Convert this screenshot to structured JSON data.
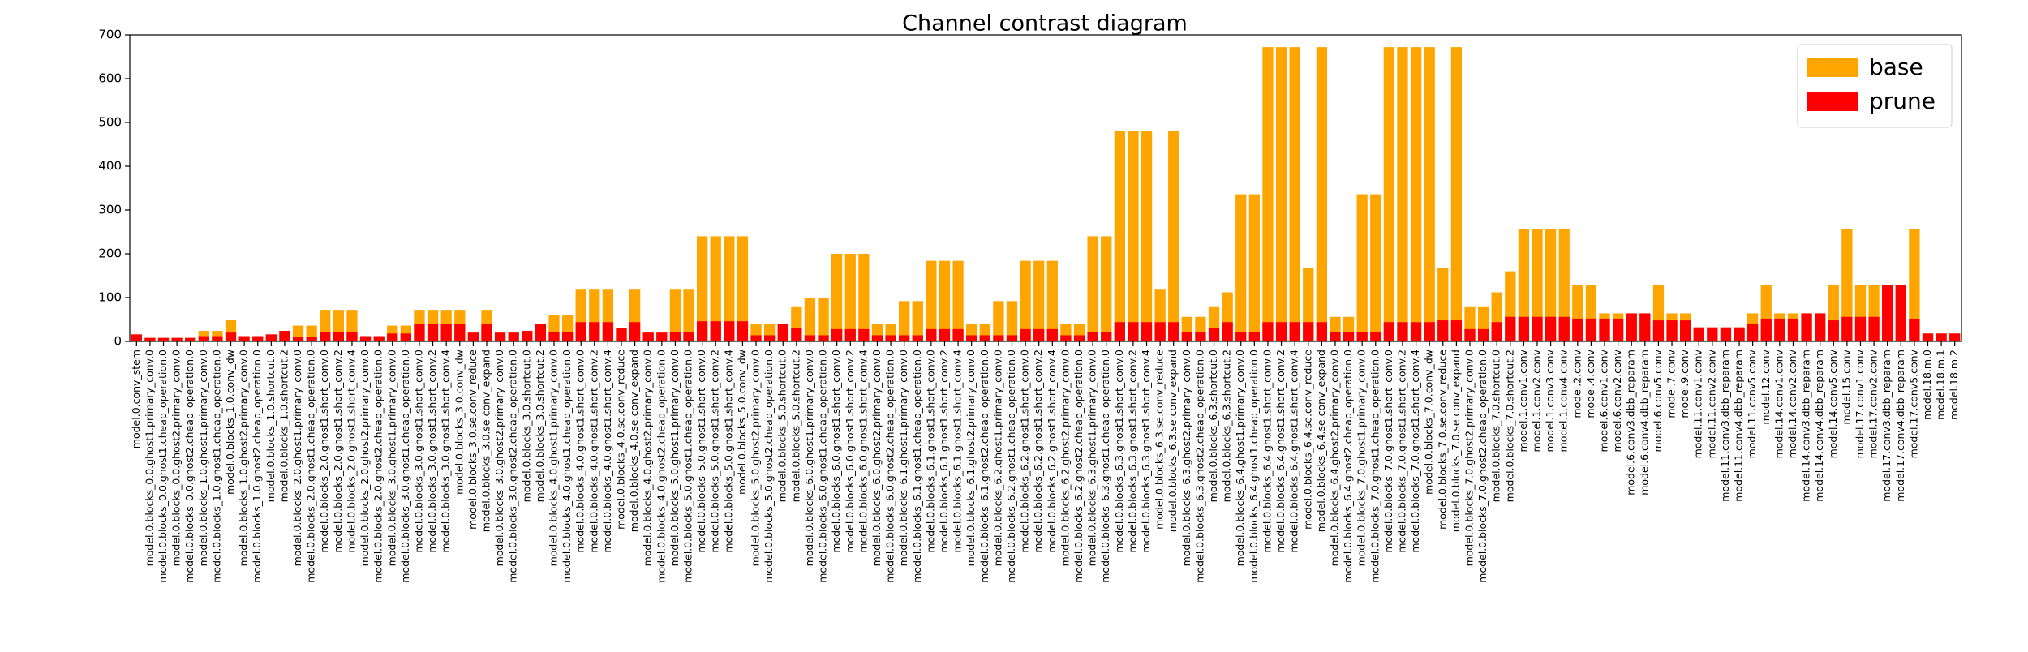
{
  "chart_data": {
    "type": "bar",
    "title": "Channel contrast diagram",
    "categories": [
      "model.0.conv_stem",
      "model.0.blocks_0.0.ghost1.primary_conv.0",
      "model.0.blocks_0.0.ghost1.cheap_operation.0",
      "model.0.blocks_0.0.ghost2.primary_conv.0",
      "model.0.blocks_0.0.ghost2.cheap_operation.0",
      "model.0.blocks_1.0.ghost1.primary_conv.0",
      "model.0.blocks_1.0.ghost1.cheap_operation.0",
      "model.0.blocks_1.0.conv_dw",
      "model.0.blocks_1.0.ghost2.primary_conv.0",
      "model.0.blocks_1.0.ghost2.cheap_operation.0",
      "model.0.blocks_1.0.shortcut.0",
      "model.0.blocks_1.0.shortcut.2",
      "model.0.blocks_2.0.ghost1.primary_conv.0",
      "model.0.blocks_2.0.ghost1.cheap_operation.0",
      "model.0.blocks_2.0.ghost1.short_conv.0",
      "model.0.blocks_2.0.ghost1.short_conv.2",
      "model.0.blocks_2.0.ghost1.short_conv.4",
      "model.0.blocks_2.0.ghost2.primary_conv.0",
      "model.0.blocks_2.0.ghost2.cheap_operation.0",
      "model.0.blocks_3.0.ghost1.primary_conv.0",
      "model.0.blocks_3.0.ghost1.cheap_operation.0",
      "model.0.blocks_3.0.ghost1.short_conv.0",
      "model.0.blocks_3.0.ghost1.short_conv.2",
      "model.0.blocks_3.0.ghost1.short_conv.4",
      "model.0.blocks_3.0.conv_dw",
      "model.0.blocks_3.0.se.conv_reduce",
      "model.0.blocks_3.0.se.conv_expand",
      "model.0.blocks_3.0.ghost2.primary_conv.0",
      "model.0.blocks_3.0.ghost2.cheap_operation.0",
      "model.0.blocks_3.0.shortcut.0",
      "model.0.blocks_3.0.shortcut.2",
      "model.0.blocks_4.0.ghost1.primary_conv.0",
      "model.0.blocks_4.0.ghost1.cheap_operation.0",
      "model.0.blocks_4.0.ghost1.short_conv.0",
      "model.0.blocks_4.0.ghost1.short_conv.2",
      "model.0.blocks_4.0.ghost1.short_conv.4",
      "model.0.blocks_4.0.se.conv_reduce",
      "model.0.blocks_4.0.se.conv_expand",
      "model.0.blocks_4.0.ghost2.primary_conv.0",
      "model.0.blocks_4.0.ghost2.cheap_operation.0",
      "model.0.blocks_5.0.ghost1.primary_conv.0",
      "model.0.blocks_5.0.ghost1.cheap_operation.0",
      "model.0.blocks_5.0.ghost1.short_conv.0",
      "model.0.blocks_5.0.ghost1.short_conv.2",
      "model.0.blocks_5.0.ghost1.short_conv.4",
      "model.0.blocks_5.0.conv_dw",
      "model.0.blocks_5.0.ghost2.primary_conv.0",
      "model.0.blocks_5.0.ghost2.cheap_operation.0",
      "model.0.blocks_5.0.shortcut.0",
      "model.0.blocks_5.0.shortcut.2",
      "model.0.blocks_6.0.ghost1.primary_conv.0",
      "model.0.blocks_6.0.ghost1.cheap_operation.0",
      "model.0.blocks_6.0.ghost1.short_conv.0",
      "model.0.blocks_6.0.ghost1.short_conv.2",
      "model.0.blocks_6.0.ghost1.short_conv.4",
      "model.0.blocks_6.0.ghost2.primary_conv.0",
      "model.0.blocks_6.0.ghost2.cheap_operation.0",
      "model.0.blocks_6.1.ghost1.primary_conv.0",
      "model.0.blocks_6.1.ghost1.cheap_operation.0",
      "model.0.blocks_6.1.ghost1.short_conv.0",
      "model.0.blocks_6.1.ghost1.short_conv.2",
      "model.0.blocks_6.1.ghost1.short_conv.4",
      "model.0.blocks_6.1.ghost2.primary_conv.0",
      "model.0.blocks_6.1.ghost2.cheap_operation.0",
      "model.0.blocks_6.2.ghost1.primary_conv.0",
      "model.0.blocks_6.2.ghost1.cheap_operation.0",
      "model.0.blocks_6.2.ghost1.short_conv.0",
      "model.0.blocks_6.2.ghost1.short_conv.2",
      "model.0.blocks_6.2.ghost1.short_conv.4",
      "model.0.blocks_6.2.ghost2.primary_conv.0",
      "model.0.blocks_6.2.ghost2.cheap_operation.0",
      "model.0.blocks_6.3.ghost1.primary_conv.0",
      "model.0.blocks_6.3.ghost1.cheap_operation.0",
      "model.0.blocks_6.3.ghost1.short_conv.0",
      "model.0.blocks_6.3.ghost1.short_conv.2",
      "model.0.blocks_6.3.ghost1.short_conv.4",
      "model.0.blocks_6.3.se.conv_reduce",
      "model.0.blocks_6.3.se.conv_expand",
      "model.0.blocks_6.3.ghost2.primary_conv.0",
      "model.0.blocks_6.3.ghost2.cheap_operation.0",
      "model.0.blocks_6.3.shortcut.0",
      "model.0.blocks_6.3.shortcut.2",
      "model.0.blocks_6.4.ghost1.primary_conv.0",
      "model.0.blocks_6.4.ghost1.cheap_operation.0",
      "model.0.blocks_6.4.ghost1.short_conv.0",
      "model.0.blocks_6.4.ghost1.short_conv.2",
      "model.0.blocks_6.4.ghost1.short_conv.4",
      "model.0.blocks_6.4.se.conv_reduce",
      "model.0.blocks_6.4.se.conv_expand",
      "model.0.blocks_6.4.ghost2.primary_conv.0",
      "model.0.blocks_6.4.ghost2.cheap_operation.0",
      "model.0.blocks_7.0.ghost1.primary_conv.0",
      "model.0.blocks_7.0.ghost1.cheap_operation.0",
      "model.0.blocks_7.0.ghost1.short_conv.0",
      "model.0.blocks_7.0.ghost1.short_conv.2",
      "model.0.blocks_7.0.ghost1.short_conv.4",
      "model.0.blocks_7.0.conv_dw",
      "model.0.blocks_7.0.se.conv_reduce",
      "model.0.blocks_7.0.se.conv_expand",
      "model.0.blocks_7.0.ghost2.primary_conv.0",
      "model.0.blocks_7.0.ghost2.cheap_operation.0",
      "model.0.blocks_7.0.shortcut.0",
      "model.0.blocks_7.0.shortcut.2",
      "model.1.conv1.conv",
      "model.1.conv2.conv",
      "model.1.conv3.conv",
      "model.1.conv4.conv",
      "model.2.conv",
      "model.4.conv",
      "model.6.conv1.conv",
      "model.6.conv2.conv",
      "model.6.conv3.dbb_reparam",
      "model.6.conv4.dbb_reparam",
      "model.6.conv5.conv",
      "model.7.conv",
      "model.9.conv",
      "model.11.conv1.conv",
      "model.11.conv2.conv",
      "model.11.conv3.dbb_reparam",
      "model.11.conv4.dbb_reparam",
      "model.11.conv5.conv",
      "model.12.conv",
      "model.14.conv1.conv",
      "model.14.conv2.conv",
      "model.14.conv3.dbb_reparam",
      "model.14.conv4.dbb_reparam",
      "model.14.conv5.conv",
      "model.15.conv",
      "model.17.conv1.conv",
      "model.17.conv2.conv",
      "model.17.conv3.dbb_reparam",
      "model.17.conv4.dbb_reparam",
      "model.17.conv5.conv",
      "model.18.m.0",
      "model.18.m.1",
      "model.18.m.2"
    ],
    "series": [
      {
        "name": "base",
        "color": "#ffa500",
        "values": [
          16,
          8,
          8,
          8,
          8,
          24,
          24,
          48,
          12,
          12,
          16,
          24,
          36,
          36,
          72,
          72,
          72,
          12,
          12,
          36,
          36,
          72,
          72,
          72,
          72,
          20,
          72,
          20,
          20,
          24,
          40,
          60,
          60,
          120,
          120,
          120,
          30,
          120,
          20,
          20,
          120,
          120,
          240,
          240,
          240,
          240,
          40,
          40,
          40,
          80,
          100,
          100,
          200,
          200,
          200,
          40,
          40,
          92,
          92,
          184,
          184,
          184,
          40,
          40,
          92,
          92,
          184,
          184,
          184,
          40,
          40,
          240,
          240,
          480,
          480,
          480,
          120,
          480,
          56,
          56,
          80,
          112,
          336,
          336,
          672,
          672,
          672,
          168,
          672,
          56,
          56,
          336,
          336,
          672,
          672,
          672,
          672,
          168,
          672,
          80,
          80,
          112,
          160,
          256,
          256,
          256,
          256,
          128,
          128,
          64,
          64,
          64,
          64,
          128,
          64,
          64,
          32,
          32,
          32,
          32,
          64,
          128,
          64,
          64,
          64,
          64,
          128,
          256,
          128,
          128,
          128,
          128,
          256,
          18,
          18,
          18
        ]
      },
      {
        "name": "prune",
        "color": "#ff0000",
        "values": [
          16,
          8,
          8,
          8,
          8,
          12,
          12,
          20,
          12,
          12,
          16,
          24,
          10,
          10,
          22,
          22,
          22,
          12,
          12,
          18,
          18,
          40,
          40,
          40,
          40,
          20,
          40,
          20,
          20,
          24,
          40,
          22,
          22,
          44,
          44,
          44,
          30,
          44,
          20,
          20,
          22,
          22,
          46,
          46,
          46,
          46,
          14,
          14,
          40,
          30,
          14,
          14,
          28,
          28,
          28,
          14,
          14,
          14,
          14,
          28,
          28,
          28,
          14,
          14,
          14,
          14,
          28,
          28,
          28,
          14,
          14,
          22,
          22,
          44,
          44,
          44,
          44,
          44,
          22,
          22,
          30,
          44,
          22,
          22,
          44,
          44,
          44,
          44,
          44,
          22,
          22,
          22,
          22,
          44,
          44,
          44,
          44,
          48,
          48,
          28,
          28,
          44,
          56,
          56,
          56,
          56,
          56,
          52,
          52,
          52,
          52,
          64,
          64,
          48,
          48,
          48,
          32,
          32,
          32,
          32,
          40,
          52,
          52,
          52,
          64,
          64,
          48,
          56,
          56,
          56,
          128,
          128,
          52,
          18,
          18,
          18
        ]
      }
    ],
    "ylim": [
      0,
      700
    ],
    "yticks": [
      0,
      100,
      200,
      300,
      400,
      500,
      600,
      700
    ],
    "legend": "upper right"
  }
}
